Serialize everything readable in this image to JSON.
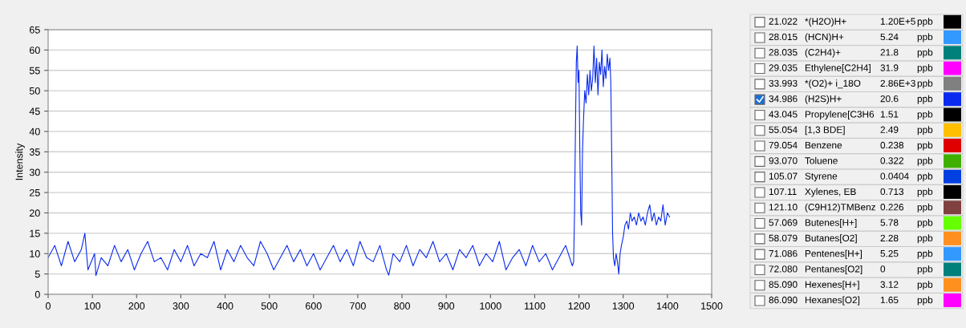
{
  "chart_data": [
    {
      "type": "line",
      "ylabel": "Intensity",
      "xlim": [
        0,
        1500
      ],
      "ylim": [
        0,
        65
      ],
      "xticks": [
        0,
        100,
        200,
        300,
        400,
        500,
        600,
        700,
        800,
        900,
        1000,
        1100,
        1200,
        1300,
        1400,
        1500
      ],
      "yticks": [
        0,
        5,
        10,
        15,
        20,
        25,
        30,
        35,
        40,
        45,
        50,
        55,
        60,
        65
      ],
      "grid": "y",
      "marker": "none",
      "line_style": "solid",
      "series": [
        {
          "color": "#0a2bef",
          "x": [
            0,
            15,
            30,
            45,
            60,
            75,
            83,
            90,
            105,
            108,
            120,
            135,
            150,
            165,
            180,
            195,
            210,
            225,
            240,
            255,
            270,
            285,
            300,
            315,
            330,
            345,
            360,
            375,
            390,
            405,
            420,
            435,
            450,
            465,
            480,
            495,
            510,
            525,
            540,
            555,
            570,
            585,
            600,
            615,
            630,
            645,
            660,
            675,
            690,
            705,
            720,
            735,
            750,
            765,
            770,
            780,
            795,
            810,
            825,
            840,
            855,
            870,
            885,
            900,
            915,
            930,
            945,
            960,
            975,
            990,
            1005,
            1020,
            1035,
            1050,
            1065,
            1080,
            1095,
            1110,
            1125,
            1140,
            1155,
            1170,
            1185,
            1188,
            1190,
            1192,
            1194,
            1196,
            1198,
            1200,
            1202,
            1204,
            1206,
            1208,
            1210,
            1213,
            1216,
            1219,
            1222,
            1225,
            1228,
            1231,
            1234,
            1237,
            1240,
            1243,
            1246,
            1249,
            1252,
            1255,
            1258,
            1261,
            1264,
            1267,
            1270,
            1272,
            1274,
            1276,
            1278,
            1281,
            1284,
            1287,
            1290,
            1293,
            1296,
            1300,
            1304,
            1308,
            1312,
            1316,
            1320,
            1325,
            1330,
            1335,
            1340,
            1345,
            1350,
            1355,
            1360,
            1365,
            1370,
            1375,
            1380,
            1385,
            1390,
            1395,
            1400,
            1405
          ],
          "values": [
            9,
            12,
            7,
            13,
            8,
            11,
            15,
            6,
            10,
            4.6,
            9,
            7,
            12,
            8,
            11,
            6,
            10,
            13,
            8,
            9,
            6,
            11,
            8,
            12,
            7,
            10,
            9,
            13,
            6,
            11,
            8,
            12,
            9,
            7,
            13,
            10,
            6,
            9,
            12,
            8,
            11,
            7,
            10,
            6,
            9,
            12,
            8,
            11,
            7,
            13,
            9,
            8,
            12,
            6,
            4.7,
            10,
            8,
            12,
            7,
            11,
            9,
            13,
            8,
            10,
            6,
            11,
            9,
            12,
            7,
            10,
            8,
            13,
            6,
            9,
            11,
            7,
            12,
            8,
            10,
            6,
            9,
            12,
            7,
            8,
            20,
            40,
            57,
            61,
            52,
            55,
            35,
            20,
            17,
            35,
            42,
            50,
            47,
            54,
            49,
            55,
            50,
            53,
            61,
            52,
            58,
            49,
            57,
            54,
            60,
            51,
            56,
            53,
            59,
            55,
            58,
            52,
            35,
            15,
            9,
            7,
            10,
            8,
            5,
            10,
            12,
            14,
            17,
            18,
            16,
            20,
            18,
            19,
            17,
            20,
            18,
            19,
            17,
            20,
            22,
            18,
            20,
            17,
            19,
            18,
            22,
            17,
            20,
            19
          ]
        }
      ]
    },
    {
      "type": "other",
      "categories": [
        "21.022",
        "28.015",
        "28.035",
        "29.035",
        "33.993",
        "34.986",
        "43.045",
        "55.054",
        "79.054",
        "93.070",
        "105.07",
        "107.11",
        "121.10",
        "57.069",
        "58.079",
        "71.086",
        "72.080",
        "85.090",
        "86.090"
      ],
      "annotations": [
        "*(H2O)H+",
        "(HCN)H+",
        "(C2H4)+",
        "Ethylene[C2H4]",
        "*(O2)+ i_18O",
        "(H2S)H+",
        "Propylene[C3H6",
        "[1,3 BDE]",
        "Benzene",
        "Toluene",
        "Styrene",
        "Xylenes, EB",
        "(C9H12)TMBenz",
        "Butenes[H+]",
        "Butanes[O2]",
        "Pentenes[H+]",
        "Pentanes[O2]",
        "Hexenes[H+]",
        "Hexanes[O2]"
      ],
      "value_labels": [
        "1.20E+5",
        "5.24",
        "21.8",
        "31.9",
        "2.86E+3",
        "20.6",
        "1.51",
        "2.49",
        "0.238",
        "0.322",
        "0.0404",
        "0.713",
        "0.226",
        "5.78",
        "2.28",
        "5.25",
        "0",
        "3.12",
        "1.65"
      ],
      "xlabel": "ppb",
      "colors": [
        "#000000",
        "#3399ff",
        "#00807a",
        "#ff00ff",
        "#808080",
        "#0a2bef",
        "#000000",
        "#ffc000",
        "#e00000",
        "#40b000",
        "#0040e0",
        "#000000",
        "#804040",
        "#66ff00",
        "#ff9020",
        "#3399ff",
        "#00807a",
        "#ff9020",
        "#ff00ff"
      ]
    }
  ]
}
